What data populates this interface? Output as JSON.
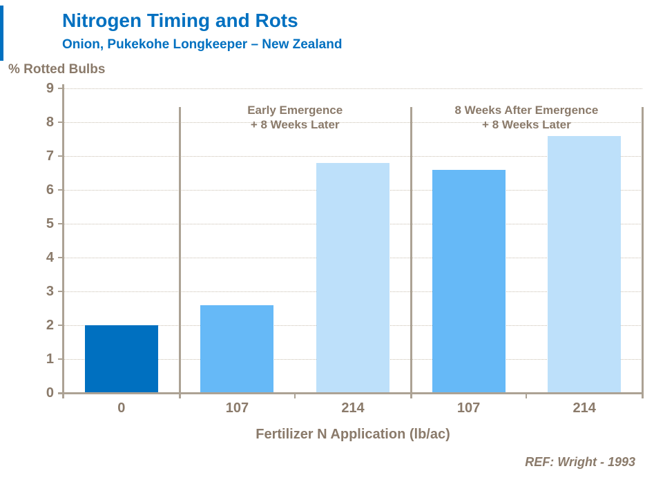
{
  "chart_data": {
    "type": "bar",
    "title": "Nitrogen Timing and Rots",
    "subtitle": "Onion, Pukekohe Longkeeper – New Zealand",
    "ylabel": "% Rotted Bulbs",
    "xlabel": "Fertilizer N  Application (lb/ac)",
    "ref": "REF: Wright - 1993",
    "ylim": [
      0,
      9
    ],
    "ytick_step": 1,
    "grid": "horizontal-dotted",
    "legend": "none",
    "categories": [
      "0",
      "107",
      "214",
      "107",
      "214"
    ],
    "values": [
      2.0,
      2.6,
      6.8,
      6.6,
      7.6
    ],
    "bar_colors": [
      "#0070C0",
      "#66B9F7",
      "#BDE0FA",
      "#66B9F7",
      "#BDE0FA"
    ],
    "group_annotations": [
      {
        "line1": "Early Emergence",
        "line2": "+ 8 Weeks Later",
        "span_categories": [
          1,
          2
        ]
      },
      {
        "line1": "8 Weeks After Emergence",
        "line2": "+ 8 Weeks Later",
        "span_categories": [
          3,
          4
        ]
      }
    ],
    "group_dividers_after_categories": [
      0,
      2
    ]
  },
  "colors": {
    "title_blue": "#0070C0",
    "text_brown": "#8A7A6A",
    "axis_line": "#ACA294",
    "gridline": "#C9BFB0",
    "bar_dark_blue": "#0070C0",
    "bar_medium_blue": "#66B9F7",
    "bar_pale_blue": "#BDE0FA"
  }
}
